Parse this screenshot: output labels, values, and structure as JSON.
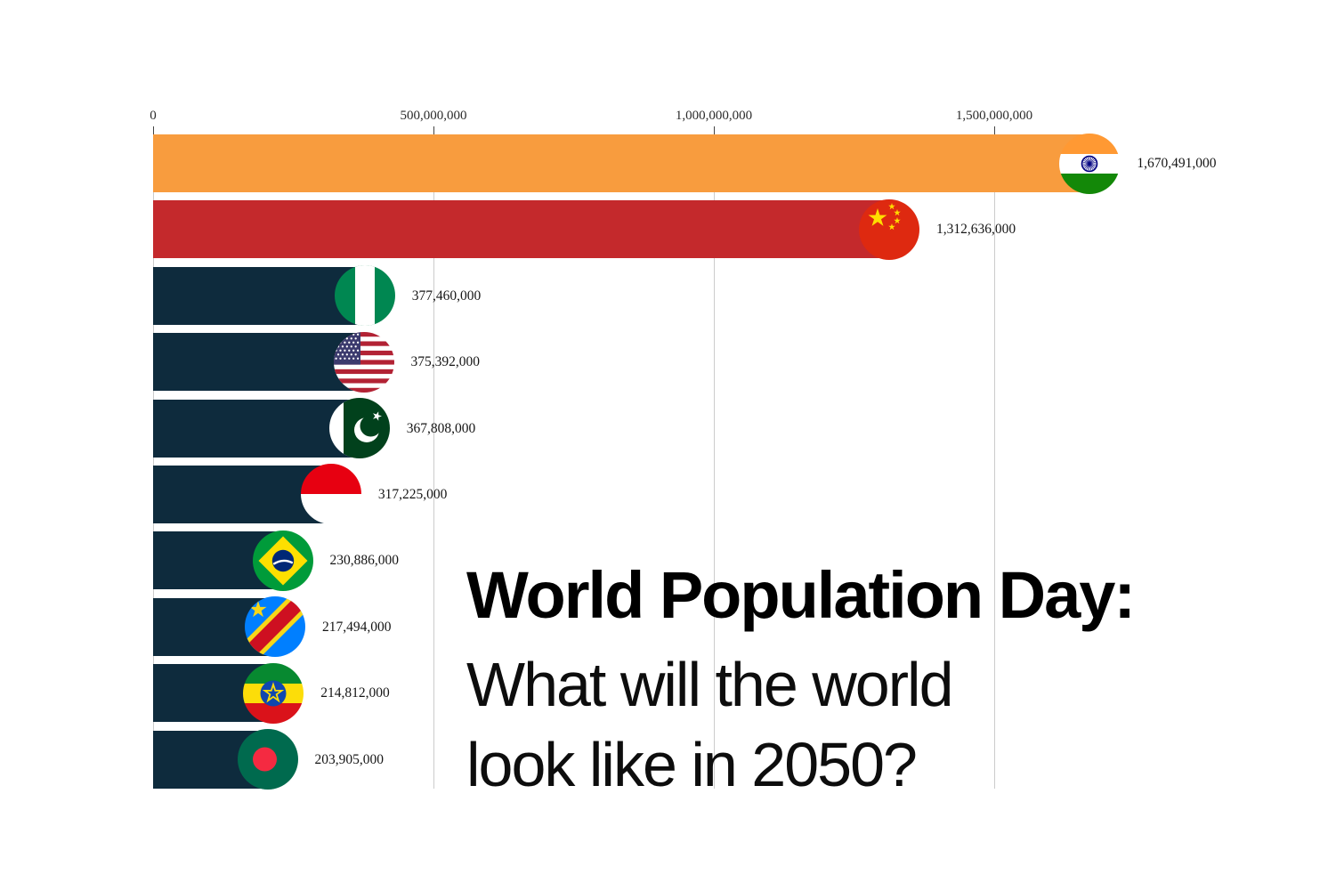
{
  "title": {
    "heading": "World Population Day:",
    "line1": "What will the world",
    "line2": "look like in 2050?"
  },
  "chart_data": {
    "type": "bar",
    "orientation": "horizontal",
    "title": "World Population Day: What will the world look like in 2050?",
    "xlabel": "",
    "ylabel": "",
    "unit": "people",
    "grid": true,
    "legend": "none",
    "xlim": [
      0,
      1750000000
    ],
    "x_ticks": [
      {
        "label": "0",
        "value": 0
      },
      {
        "label": "500,000,000",
        "value": 500000000
      },
      {
        "label": "1,000,000,000",
        "value": 1000000000
      },
      {
        "label": "1,500,000,000",
        "value": 1500000000
      }
    ],
    "categories": [
      "India",
      "China",
      "Nigeria",
      "United States",
      "Pakistan",
      "Indonesia",
      "Brazil",
      "DR Congo",
      "Ethiopia",
      "Bangladesh"
    ],
    "values": [
      1670491000,
      1312636000,
      377460000,
      375392000,
      367808000,
      317225000,
      230886000,
      217494000,
      214812000,
      203905000
    ],
    "value_labels": [
      "1,670,491,000",
      "1,312,636,000",
      "377,460,000",
      "375,392,000",
      "367,808,000",
      "317,225,000",
      "230,886,000",
      "217,494,000",
      "214,812,000",
      "203,905,000"
    ],
    "bar_colors": [
      "#f89c3e",
      "#c4292c",
      "#0e2b3d",
      "#0e2b3d",
      "#0e2b3d",
      "#0e2b3d",
      "#0e2b3d",
      "#0e2b3d",
      "#0e2b3d",
      "#0e2b3d"
    ],
    "flag_icons": [
      "india-flag-icon",
      "china-flag-icon",
      "nigeria-flag-icon",
      "usa-flag-icon",
      "pakistan-flag-icon",
      "indonesia-flag-icon",
      "brazil-flag-icon",
      "dr-congo-flag-icon",
      "ethiopia-flag-icon",
      "bangladesh-flag-icon"
    ]
  },
  "colors": {
    "highlight_bar_1": "#f89c3e",
    "highlight_bar_2": "#c4292c",
    "default_bar": "#0e2b3d",
    "gridline": "#cccccc",
    "background": "#ffffff"
  }
}
